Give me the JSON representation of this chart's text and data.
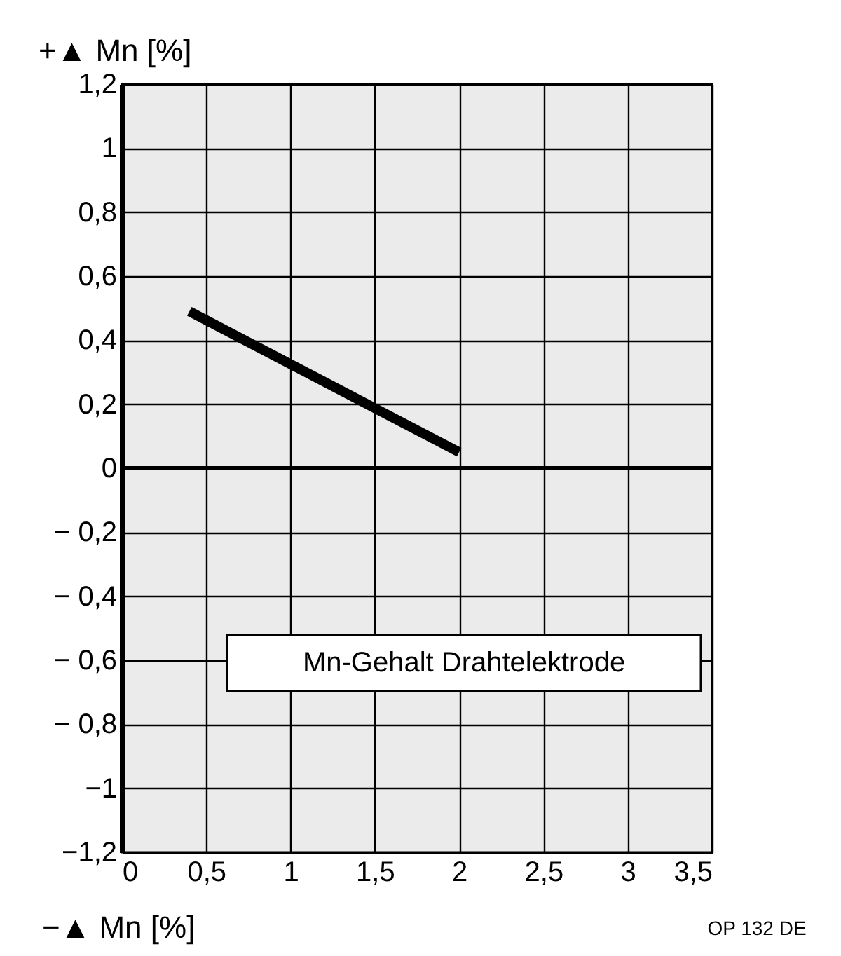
{
  "chart_data": {
    "type": "line",
    "ylabel": "+▲ Mn [%]",
    "xlabel": "Mn-Gehalt Drahtelektrode",
    "annotations": [
      "−▲ Mn [%]",
      "OP 132 DE"
    ],
    "x": [
      0.4,
      2.0
    ],
    "series": [
      {
        "color": "#000000",
        "values": [
          0.49,
          0.05
        ]
      }
    ],
    "xlim": [
      0,
      3.5
    ],
    "xticks": [
      0,
      {
        "value": 0.5,
        "label": "0,5"
      },
      1,
      {
        "value": 1.5,
        "label": "1,5"
      },
      2,
      {
        "value": 2.5,
        "label": "2,5"
      },
      3,
      {
        "value": 3.5,
        "label": "3,5"
      }
    ],
    "ylim": [
      -1.2,
      1.2
    ],
    "yticks": [
      {
        "value": -1.2,
        "label": "−1,2"
      },
      {
        "value": -1,
        "label": "−1"
      },
      {
        "value": -0.8,
        "label": "− 0,8"
      },
      {
        "value": -0.6,
        "label": "− 0,6"
      },
      {
        "value": -0.4,
        "label": "− 0,4"
      },
      {
        "value": -0.2,
        "label": "− 0,2"
      },
      0,
      {
        "value": 0.2,
        "label": "0,2"
      },
      {
        "value": 0.4,
        "label": "0,4"
      },
      {
        "value": 0.6,
        "label": "0,6"
      },
      {
        "value": 0.8,
        "label": "0,8"
      },
      1,
      {
        "value": 1.2,
        "label": "1,2"
      }
    ],
    "ref_lines": [
      {
        "axis": "y",
        "value": 0,
        "color": "#000000"
      }
    ],
    "grid": true
  }
}
